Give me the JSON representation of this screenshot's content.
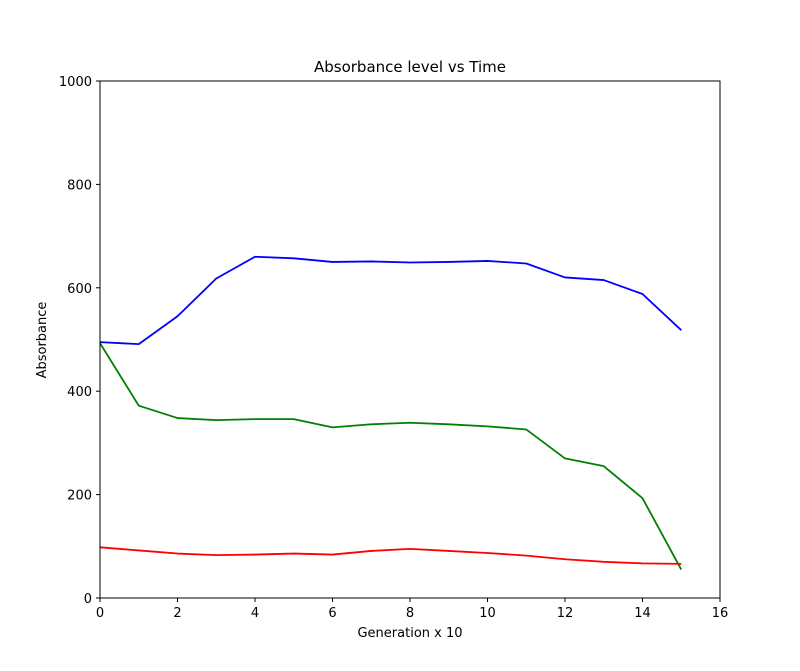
{
  "chart_data": {
    "type": "line",
    "title": "Absorbance level vs Time",
    "xlabel": "Generation x 10",
    "ylabel": "Absorbance",
    "xlim": [
      0,
      16
    ],
    "ylim": [
      0,
      1000
    ],
    "xticks": [
      "0",
      "2",
      "4",
      "6",
      "8",
      "10",
      "12",
      "14",
      "16"
    ],
    "yticks": [
      "0",
      "200",
      "400",
      "600",
      "800",
      "1000"
    ],
    "grid": false,
    "x": [
      0,
      1,
      2,
      3,
      4,
      5,
      6,
      7,
      8,
      9,
      10,
      11,
      12,
      13,
      14,
      15
    ],
    "series": [
      {
        "color": "#0000ff",
        "values": [
          495,
          491,
          545,
          618,
          660,
          657,
          650,
          651,
          649,
          650,
          652,
          647,
          620,
          615,
          588,
          518
        ]
      },
      {
        "color": "#008000",
        "values": [
          493,
          372,
          348,
          344,
          346,
          346,
          330,
          336,
          339,
          336,
          332,
          326,
          270,
          255,
          193,
          55
        ]
      },
      {
        "color": "#ff0000",
        "values": [
          98,
          92,
          86,
          83,
          84,
          86,
          84,
          91,
          95,
          91,
          87,
          82,
          75,
          70,
          67,
          66
        ]
      }
    ]
  }
}
